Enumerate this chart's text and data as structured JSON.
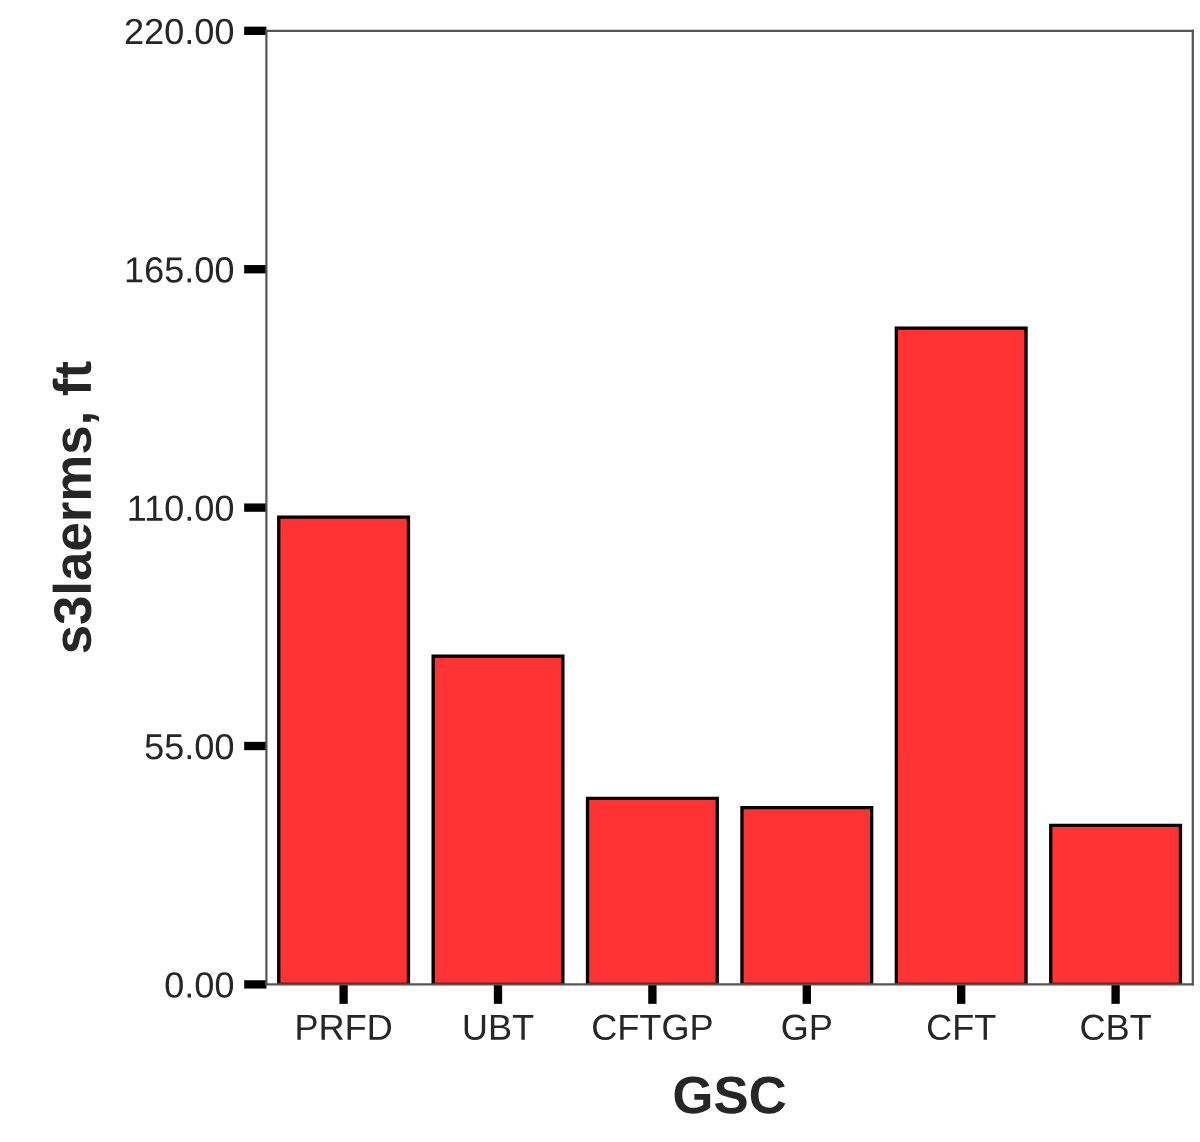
{
  "chart_data": {
    "type": "bar",
    "xlabel": "GSC",
    "ylabel": "s3laerms, ft",
    "categories": [
      "PRFD",
      "UBT",
      "CFTGP",
      "GP",
      "CFT",
      "CBT"
    ],
    "values": [
      107.8,
      75.7,
      42.9,
      40.8,
      151.4,
      36.7
    ],
    "color": "#ff3333",
    "ylim": [
      0,
      220
    ],
    "yticks": [
      {
        "value": 0,
        "label": "0.00"
      },
      {
        "value": 55,
        "label": "55.00"
      },
      {
        "value": 110,
        "label": "110.00"
      },
      {
        "value": 165,
        "label": "165.00"
      },
      {
        "value": 220,
        "label": "220.00"
      }
    ],
    "grid": false
  }
}
